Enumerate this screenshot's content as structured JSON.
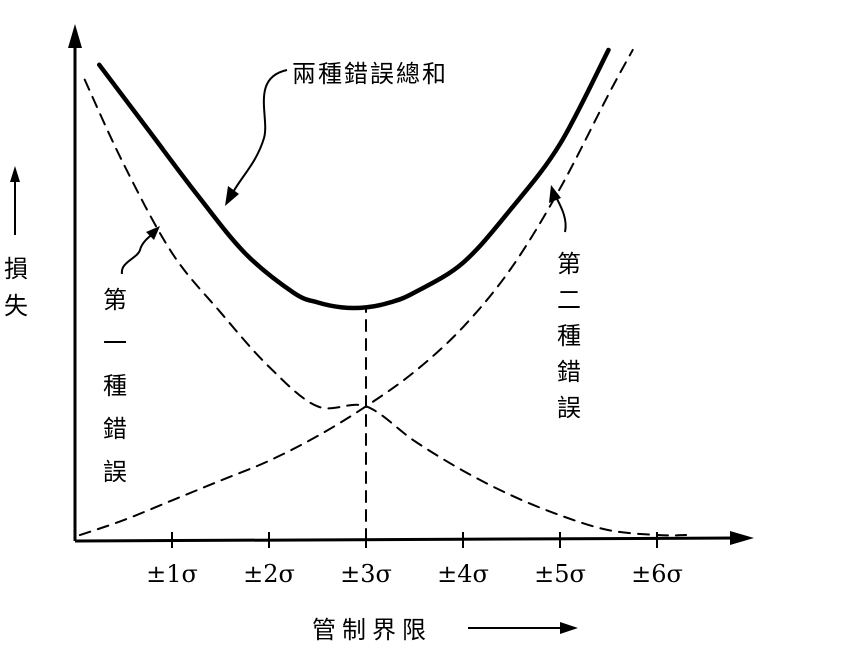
{
  "chart_data": {
    "type": "line",
    "xlabel": "管制界限",
    "ylabel": "損失",
    "x_ticks": [
      {
        "value": 1,
        "label": "±1σ"
      },
      {
        "value": 2,
        "label": "±2σ"
      },
      {
        "value": 3,
        "label": "±3σ"
      },
      {
        "value": 4,
        "label": "±4σ"
      },
      {
        "value": 5,
        "label": "±5σ"
      },
      {
        "value": 6,
        "label": "±6σ"
      }
    ],
    "xlim": [
      0,
      7
    ],
    "ylim": [
      0,
      100
    ],
    "grid": false,
    "series": [
      {
        "name": "兩種錯誤總和",
        "style": "solid",
        "x": [
          0.25,
          0.75,
          1.25,
          1.75,
          2.25,
          2.5,
          2.75,
          3.0,
          3.25,
          3.5,
          4.0,
          4.5,
          5.0,
          5.5
        ],
        "values": [
          96,
          83,
          70,
          58,
          50,
          48,
          47,
          47,
          48,
          50,
          56,
          67,
          80,
          99
        ]
      },
      {
        "name": "第一種錯誤",
        "style": "dashed",
        "x": [
          0.1,
          0.5,
          1.0,
          1.5,
          2.0,
          2.5,
          3.0,
          3.5,
          4.0,
          4.5,
          5.0,
          5.5,
          6.0,
          6.3
        ],
        "values": [
          93,
          76,
          58,
          46,
          35,
          27,
          27,
          20,
          14,
          9,
          5,
          2,
          1,
          1
        ]
      },
      {
        "name": "第二種錯誤",
        "style": "dashed",
        "x": [
          0.05,
          0.5,
          1.0,
          1.5,
          2.0,
          2.5,
          3.0,
          3.5,
          4.0,
          4.5,
          5.0,
          5.5,
          5.75
        ],
        "values": [
          1,
          4,
          8,
          12,
          16,
          21,
          27,
          34,
          43,
          55,
          71,
          90,
          99
        ]
      },
      {
        "name": "",
        "style": "dashed",
        "x": [
          3.0,
          3.0
        ],
        "values": [
          0,
          47
        ]
      }
    ]
  }
}
